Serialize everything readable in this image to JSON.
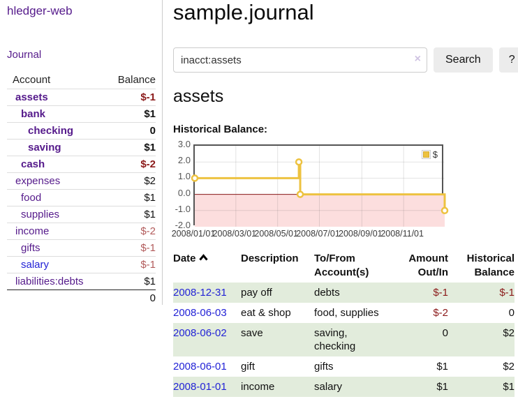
{
  "colors": {
    "link_purple": "#551a8b",
    "link_blue": "#2323d6",
    "negative_dark": "#8b1a1a",
    "negative_soft": "#b25b5b",
    "row_green": "#e2ecdc",
    "chart_line": "#edc240",
    "chart_marker_fill": "#ffffff",
    "chart_negative_region": "#fcdede",
    "chart_zero_line": "#8b1a1a",
    "chart_border": "#545454",
    "axis_text": "#545454"
  },
  "sidebar": {
    "app_title": "hledger-web",
    "journal_link": "Journal",
    "accounts": {
      "headers": {
        "account": "Account",
        "balance": "Balance"
      },
      "rows": [
        {
          "account": "assets",
          "balance": "$-1",
          "level": 1,
          "bold": true,
          "neg": true
        },
        {
          "account": "bank",
          "balance": "$1",
          "level": 2,
          "bold": true
        },
        {
          "account": "checking",
          "balance": "0",
          "level": 3,
          "bold": true
        },
        {
          "account": "saving",
          "balance": "$1",
          "level": 3,
          "bold": true
        },
        {
          "account": "cash",
          "balance": "$-2",
          "level": 2,
          "bold": true,
          "neg": true
        },
        {
          "account": "expenses",
          "balance": "$2",
          "level": 1
        },
        {
          "account": "food",
          "balance": "$1",
          "level": 2
        },
        {
          "account": "supplies",
          "balance": "$1",
          "level": 2
        },
        {
          "account": "income",
          "balance": "$-2",
          "level": 1,
          "neg_soft": true
        },
        {
          "account": "gifts",
          "balance": "$-1",
          "level": 2,
          "neg_soft": true
        },
        {
          "account": "salary",
          "balance": "$-1",
          "level": 2,
          "neg_soft": true,
          "blue": true
        },
        {
          "account": "liabilities:debts",
          "balance": "$1",
          "level": 1
        }
      ],
      "total": "0"
    }
  },
  "main": {
    "title": "sample.journal",
    "search": {
      "value": "inacct:assets",
      "clear_glyph": "×",
      "button_label": "Search",
      "help_label": "?"
    },
    "account_heading": "assets",
    "chart_label": "Historical Balance:"
  },
  "chart_data": {
    "type": "line",
    "style": "step",
    "title": "Historical Balance",
    "legend": {
      "label": "$",
      "position": "top-right"
    },
    "ylim": [
      -2.0,
      3.0
    ],
    "yticks": [
      3.0,
      2.0,
      1.0,
      0.0,
      -1.0,
      -2.0
    ],
    "x_range_days": [
      0,
      365
    ],
    "xticks": [
      {
        "label": "2008/01/01",
        "x": 0
      },
      {
        "label": "2008/03/01",
        "x": 60
      },
      {
        "label": "2008/05/01",
        "x": 121
      },
      {
        "label": "2008/07/01",
        "x": 182
      },
      {
        "label": "2008/09/01",
        "x": 244
      },
      {
        "label": "2008/11/01",
        "x": 305
      }
    ],
    "series": [
      {
        "name": "$",
        "points": [
          {
            "date": "2008-01-01",
            "x": 0,
            "y": 1
          },
          {
            "date": "2008-06-01",
            "x": 152,
            "y": 2
          },
          {
            "date": "2008-06-03",
            "x": 154,
            "y": 0
          },
          {
            "date": "2008-12-31",
            "x": 365,
            "y": -1
          }
        ]
      }
    ],
    "grid": true,
    "negative_region": true
  },
  "register": {
    "headers": {
      "date": "Date",
      "description": "Description",
      "accounts": "To/From Account(s)",
      "amount": "Amount Out/In",
      "balance": "Historical Balance"
    },
    "rows": [
      {
        "date": "2008-12-31",
        "description": "pay off",
        "accounts": "debts",
        "amount": "$-1",
        "balance": "$-1",
        "amount_neg": true,
        "balance_neg": true,
        "shaded": true
      },
      {
        "date": "2008-06-03",
        "description": "eat & shop",
        "accounts": "food, supplies",
        "amount": "$-2",
        "balance": "0",
        "amount_neg": true,
        "balance_neg": false,
        "shaded": false
      },
      {
        "date": "2008-06-02",
        "description": "save",
        "accounts": "saving, checking",
        "amount": "0",
        "balance": "$2",
        "amount_neg": false,
        "balance_neg": false,
        "shaded": true
      },
      {
        "date": "2008-06-01",
        "description": "gift",
        "accounts": "gifts",
        "amount": "$1",
        "balance": "$2",
        "amount_neg": false,
        "balance_neg": false,
        "shaded": false
      },
      {
        "date": "2008-01-01",
        "description": "income",
        "accounts": "salary",
        "amount": "$1",
        "balance": "$1",
        "amount_neg": false,
        "balance_neg": false,
        "shaded": true
      }
    ]
  }
}
